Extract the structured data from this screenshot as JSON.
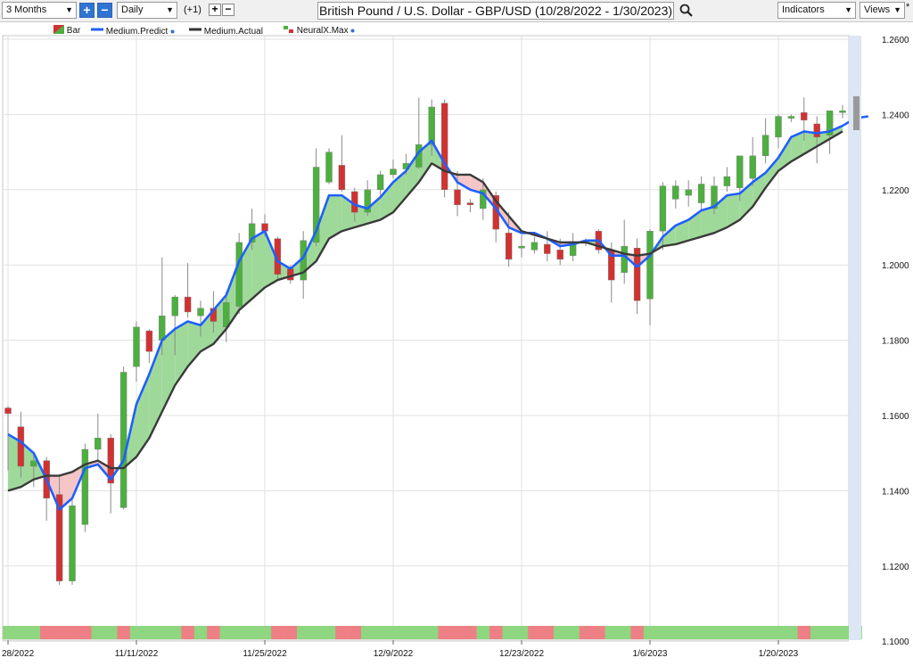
{
  "toolbar": {
    "period": "3 Months",
    "interval": "Daily",
    "offset": "(+1)",
    "plus_symbol": "+",
    "minus_symbol": "−",
    "title": "British Pound / U.S. Dollar - GBP/USD (10/28/2022 - 1/30/2023)",
    "indicators": "Indicators",
    "views": "Views",
    "views_marker": "*"
  },
  "legend": [
    {
      "label": "Bar",
      "kind": "bar-icon"
    },
    {
      "label": "Medium.Predict",
      "kind": "line",
      "color": "#1f5fff",
      "dot": true
    },
    {
      "label": "Medium.Actual",
      "kind": "line",
      "color": "#333333",
      "dot": false
    },
    {
      "label": "NeuralX.Max",
      "kind": "neural-icon",
      "dot": true
    }
  ],
  "colors": {
    "up": "#4caf3f",
    "down": "#d03232",
    "predict": "#1f5fff",
    "actual": "#3a3a3a",
    "fill_above": "#9fd99a",
    "fill_below": "#f5c6c6",
    "neural_up": "#8ed67f",
    "neural_down": "#ee7f85"
  },
  "chart_data": {
    "type": "candlestick",
    "title": "British Pound / U.S. Dollar - GBP/USD (10/28/2022 - 1/30/2023)",
    "y_ticks": [
      "1.2600",
      "1.2400",
      "1.2200",
      "1.2000",
      "1.1800",
      "1.1600",
      "1.1400",
      "1.1200",
      "1.1000"
    ],
    "ylim": [
      1.1,
      1.26
    ],
    "x_ticks": [
      {
        "index": 0,
        "label": "28/2022"
      },
      {
        "index": 10,
        "label": "11/11/2022"
      },
      {
        "index": 20,
        "label": "11/25/2022"
      },
      {
        "index": 30,
        "label": "12/9/2022"
      },
      {
        "index": 40,
        "label": "12/23/2022"
      },
      {
        "index": 50,
        "label": "1/6/2023"
      },
      {
        "index": 60,
        "label": "1/20/2023"
      }
    ],
    "grid": true,
    "legend_position": "top-left",
    "ohlc": [
      [
        1.162,
        1.1625,
        1.1455,
        1.1605
      ],
      [
        1.157,
        1.161,
        1.1435,
        1.1465
      ],
      [
        1.1465,
        1.1495,
        1.141,
        1.148
      ],
      [
        1.148,
        1.149,
        1.132,
        1.138
      ],
      [
        1.139,
        1.144,
        1.115,
        1.116
      ],
      [
        1.116,
        1.138,
        1.115,
        1.136
      ],
      [
        1.131,
        1.1525,
        1.129,
        1.151
      ],
      [
        1.151,
        1.1605,
        1.148,
        1.154
      ],
      [
        1.154,
        1.155,
        1.134,
        1.142
      ],
      [
        1.1355,
        1.173,
        1.135,
        1.1715
      ],
      [
        1.173,
        1.185,
        1.169,
        1.1835
      ],
      [
        1.1825,
        1.183,
        1.174,
        1.177
      ],
      [
        1.18,
        1.202,
        1.176,
        1.1865
      ],
      [
        1.1865,
        1.192,
        1.176,
        1.1915
      ],
      [
        1.1915,
        1.2005,
        1.186,
        1.1875
      ],
      [
        1.1865,
        1.1905,
        1.181,
        1.1885
      ],
      [
        1.1885,
        1.193,
        1.182,
        1.185
      ],
      [
        1.1835,
        1.193,
        1.1795,
        1.19
      ],
      [
        1.189,
        1.2085,
        1.187,
        1.206
      ],
      [
        1.206,
        1.215,
        1.204,
        1.211
      ],
      [
        1.211,
        1.2135,
        1.2075,
        1.209
      ],
      [
        1.207,
        1.2075,
        1.196,
        1.1975
      ],
      [
        1.199,
        1.2,
        1.195,
        1.196
      ],
      [
        1.196,
        1.209,
        1.191,
        1.2065
      ],
      [
        1.206,
        1.231,
        1.205,
        1.226
      ],
      [
        1.222,
        1.231,
        1.2215,
        1.23
      ],
      [
        1.2265,
        1.2345,
        1.2195,
        1.22
      ],
      [
        1.2195,
        1.2205,
        1.2115,
        1.214
      ],
      [
        1.214,
        1.2225,
        1.213,
        1.22
      ],
      [
        1.22,
        1.225,
        1.2185,
        1.224
      ],
      [
        1.224,
        1.228,
        1.223,
        1.2255
      ],
      [
        1.2255,
        1.2295,
        1.224,
        1.227
      ],
      [
        1.226,
        1.2445,
        1.2255,
        1.232
      ],
      [
        1.232,
        1.244,
        1.229,
        1.242
      ],
      [
        1.243,
        1.244,
        1.218,
        1.22
      ],
      [
        1.22,
        1.225,
        1.213,
        1.216
      ],
      [
        1.2165,
        1.2175,
        1.214,
        1.216
      ],
      [
        1.215,
        1.223,
        1.212,
        1.22
      ],
      [
        1.2185,
        1.2195,
        1.206,
        1.2095
      ],
      [
        1.2085,
        1.214,
        1.1995,
        1.2015
      ],
      [
        1.2045,
        1.208,
        1.202,
        1.205
      ],
      [
        1.204,
        1.2075,
        1.203,
        1.206
      ],
      [
        1.2055,
        1.209,
        1.201,
        1.203
      ],
      [
        1.204,
        1.207,
        1.2,
        1.2015
      ],
      [
        1.2025,
        1.2085,
        1.201,
        1.206
      ],
      [
        1.206,
        1.207,
        1.205,
        1.2065
      ],
      [
        1.209,
        1.2095,
        1.203,
        1.204
      ],
      [
        1.204,
        1.206,
        1.19,
        1.196
      ],
      [
        1.198,
        1.212,
        1.195,
        1.205
      ],
      [
        1.2045,
        1.207,
        1.187,
        1.1905
      ],
      [
        1.191,
        1.2095,
        1.184,
        1.209
      ],
      [
        1.209,
        1.222,
        1.204,
        1.221
      ],
      [
        1.2175,
        1.2225,
        1.215,
        1.221
      ],
      [
        1.2185,
        1.2225,
        1.2155,
        1.22
      ],
      [
        1.2165,
        1.2235,
        1.2145,
        1.2215
      ],
      [
        1.215,
        1.2235,
        1.2135,
        1.221
      ],
      [
        1.221,
        1.226,
        1.2195,
        1.2235
      ],
      [
        1.2205,
        1.228,
        1.217,
        1.229
      ],
      [
        1.223,
        1.234,
        1.221,
        1.229
      ],
      [
        1.229,
        1.239,
        1.227,
        1.2345
      ],
      [
        1.234,
        1.24,
        1.231,
        1.2395
      ],
      [
        1.239,
        1.24,
        1.238,
        1.2395
      ],
      [
        1.2405,
        1.2445,
        1.233,
        1.2385
      ],
      [
        1.2375,
        1.2395,
        1.227,
        1.234
      ],
      [
        1.2345,
        1.2405,
        1.2295,
        1.241
      ],
      [
        1.2405,
        1.2425,
        1.239,
        1.241
      ],
      [
        1.2405,
        1.242,
        1.239,
        1.24
      ]
    ],
    "series": [
      {
        "name": "Medium.Predict",
        "color": "#1f5fff",
        "values": [
          1.155,
          1.153,
          1.15,
          1.143,
          1.135,
          1.138,
          1.146,
          1.147,
          1.143,
          1.148,
          1.163,
          1.171,
          1.18,
          1.183,
          1.185,
          1.184,
          1.188,
          1.192,
          1.201,
          1.207,
          1.209,
          1.201,
          1.199,
          1.202,
          1.209,
          1.2185,
          1.2185,
          1.216,
          1.215,
          1.218,
          1.222,
          1.225,
          1.23,
          1.233,
          1.227,
          1.222,
          1.22,
          1.219,
          1.215,
          1.21,
          1.2085,
          1.2085,
          1.207,
          1.205,
          1.2055,
          1.2065,
          1.2065,
          1.2025,
          1.2025,
          1.1995,
          1.2025,
          1.2075,
          1.2105,
          1.212,
          1.2145,
          1.2155,
          1.2185,
          1.219,
          1.222,
          1.2245,
          1.2285,
          1.234,
          1.2355,
          1.235,
          1.2355,
          1.237,
          1.239,
          1.2395
        ]
      },
      {
        "name": "Medium.Actual",
        "color": "#3a3a3a",
        "values": [
          1.14,
          1.141,
          1.143,
          1.144,
          1.144,
          1.145,
          1.147,
          1.148,
          1.146,
          1.146,
          1.149,
          1.154,
          1.161,
          1.168,
          1.173,
          1.177,
          1.179,
          1.183,
          1.188,
          1.191,
          1.194,
          1.196,
          1.197,
          1.198,
          1.201,
          1.207,
          1.209,
          1.21,
          1.211,
          1.212,
          1.214,
          1.218,
          1.222,
          1.227,
          1.225,
          1.224,
          1.224,
          1.222,
          1.217,
          1.213,
          1.209,
          1.208,
          1.207,
          1.206,
          1.206,
          1.206,
          1.205,
          1.204,
          1.203,
          1.2025,
          1.203,
          1.205,
          1.2055,
          1.2065,
          1.2075,
          1.2085,
          1.21,
          1.212,
          1.2155,
          1.2205,
          1.225,
          1.2275,
          1.2295,
          1.2315,
          1.2335,
          1.2355
        ]
      }
    ],
    "neuralx_max": [
      "up",
      "up",
      "up",
      "down",
      "down",
      "down",
      "down",
      "up",
      "up",
      "down",
      "up",
      "up",
      "up",
      "up",
      "down",
      "up",
      "down",
      "up",
      "up",
      "up",
      "up",
      "down",
      "down",
      "up",
      "up",
      "up",
      "down",
      "down",
      "up",
      "up",
      "up",
      "up",
      "up",
      "up",
      "down",
      "down",
      "down",
      "up",
      "down",
      "up",
      "up",
      "down",
      "down",
      "up",
      "up",
      "down",
      "down",
      "up",
      "up",
      "down",
      "up",
      "up",
      "up",
      "up",
      "up",
      "up",
      "up",
      "up",
      "up",
      "up",
      "up",
      "up",
      "down",
      "up",
      "up",
      "up",
      "up"
    ]
  }
}
